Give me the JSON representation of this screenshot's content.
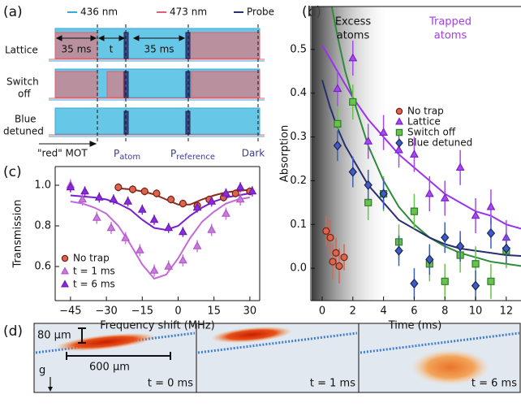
{
  "panel_labels": [
    "(a)",
    "(b)",
    "(c)",
    "(d)"
  ],
  "timing_diagram": {
    "legend": [
      {
        "name": "436 nm",
        "color": "#3aa8d8"
      },
      {
        "name": "473 nm",
        "color": "#e06070"
      },
      {
        "name": "Probe",
        "color": "#2b2f6e"
      }
    ],
    "rows": [
      [
        "Lattice"
      ],
      [
        "Switch",
        "off"
      ],
      [
        "Blue",
        "detuned"
      ]
    ],
    "durations": [
      "35 ms",
      "t",
      "35 ms"
    ],
    "events": [
      "\"red\" MOT",
      {
        "main": "P",
        "sub": "atom"
      },
      {
        "main": "P",
        "sub": "reference"
      },
      "Dark"
    ]
  },
  "images": {
    "scales": [
      "80 μm",
      "600 μm",
      "g"
    ],
    "times": [
      "t = 0 ms",
      "t = 1 ms",
      "t = 6 ms"
    ]
  },
  "chart_data": [
    {
      "type": "scatter",
      "xlabel": "Time (ms)",
      "ylabel": "Absorption",
      "xlim": [
        -0.74,
        12.96
      ],
      "xticks": [
        0,
        2,
        4,
        6,
        8,
        10,
        12
      ],
      "ylim": [
        -0.074,
        0.598
      ],
      "yticks": [
        {
          "value": 0,
          "label": "0.0"
        },
        0.1,
        0.2,
        0.3,
        0.4,
        0.5
      ],
      "legend": "upper right",
      "annotations": [
        {
          "lines": [
            "Excess",
            "atoms"
          ],
          "color": "#111111"
        },
        {
          "lines": [
            "Trapped",
            "atoms"
          ],
          "color": "#a040e0"
        }
      ],
      "series": [
        {
          "name": "No trap",
          "marker": "circle",
          "color": "#d9664f",
          "edgecolor": "#7a1e10",
          "x": [
            0.26,
            0.53,
            0.69,
            0.9,
            1.11,
            1.43
          ],
          "values": [
            0.085,
            0.07,
            0.015,
            0.035,
            0.005,
            0.025
          ],
          "errors": [
            0.035,
            0.04,
            0.04,
            0.035,
            0.04,
            0.03
          ]
        },
        {
          "name": "Lattice",
          "marker": "triangle",
          "color": "#a64be8",
          "edgecolor": "#7a1fcf",
          "x": [
            1,
            2,
            3,
            4,
            5,
            6,
            7,
            8,
            9,
            10,
            11,
            12
          ],
          "values": [
            0.41,
            0.48,
            0.29,
            0.31,
            0.27,
            0.26,
            0.17,
            0.16,
            0.23,
            0.12,
            0.14,
            0.07
          ],
          "errors": [
            0.04,
            0.04,
            0.04,
            0.04,
            0.04,
            0.04,
            0.04,
            0.04,
            0.04,
            0.04,
            0.04,
            0.04
          ]
        },
        {
          "name": "Switch off",
          "marker": "square",
          "color": "#69c24a",
          "edgecolor": "#2c7d2c",
          "x": [
            1,
            2,
            3,
            4,
            5,
            6,
            7,
            8,
            9,
            10,
            11,
            12
          ],
          "values": [
            0.33,
            0.38,
            0.15,
            0.17,
            0.06,
            0.13,
            0.01,
            -0.03,
            0.03,
            0.01,
            -0.03,
            0.04
          ],
          "errors": [
            0.04,
            0.04,
            0.04,
            0.04,
            0.04,
            0.04,
            0.04,
            0.04,
            0.04,
            0.04,
            0.04,
            0.04
          ]
        },
        {
          "name": "Blue detuned",
          "marker": "diamond",
          "color": "#3f5cc0",
          "edgecolor": "#1c2460",
          "x": [
            1,
            2,
            3,
            4,
            5,
            6,
            7,
            8,
            9,
            10,
            11,
            12
          ],
          "values": [
            0.28,
            0.22,
            0.19,
            0.17,
            0.04,
            -0.035,
            0.02,
            0.07,
            0.05,
            -0.04,
            0.08,
            0.045
          ],
          "errors": [
            0.035,
            0.035,
            0.035,
            0.035,
            0.035,
            0.035,
            0.035,
            0.035,
            0.035,
            0.035,
            0.035,
            0.035
          ]
        }
      ],
      "fits": [
        {
          "color": "#9933ee",
          "x": [
            0,
            0.5,
            1,
            1.5,
            2,
            3,
            4,
            5,
            6,
            7,
            8,
            9,
            10,
            11,
            12,
            13
          ],
          "values": [
            0.51,
            0.48,
            0.45,
            0.42,
            0.39,
            0.34,
            0.3,
            0.26,
            0.23,
            0.2,
            0.17,
            0.15,
            0.13,
            0.12,
            0.1,
            0.09
          ]
        },
        {
          "color": "#2e8b3a",
          "x": [
            0,
            0.5,
            1,
            1.5,
            2,
            3,
            4,
            5,
            6,
            7,
            8,
            9,
            10,
            11,
            12,
            13
          ],
          "values": [
            0.72,
            0.62,
            0.53,
            0.45,
            0.39,
            0.28,
            0.2,
            0.14,
            0.1,
            0.07,
            0.05,
            0.035,
            0.025,
            0.015,
            0.01,
            0.005
          ]
        },
        {
          "color": "#27306e",
          "x": [
            0,
            0.5,
            1,
            1.5,
            2,
            3,
            4,
            5,
            6,
            7,
            8,
            9,
            10,
            11,
            12,
            13
          ],
          "values": [
            0.43,
            0.37,
            0.32,
            0.28,
            0.25,
            0.19,
            0.15,
            0.11,
            0.09,
            0.07,
            0.055,
            0.045,
            0.04,
            0.035,
            0.03,
            0.028
          ]
        }
      ]
    },
    {
      "type": "scatter",
      "xlabel": "Frequency shift (MHz)",
      "ylabel": "Transmission",
      "xlim": [
        -51.4,
        34.1
      ],
      "xticks": [
        {
          "value": -45,
          "label": "−45"
        },
        {
          "value": -30,
          "label": "−30"
        },
        {
          "value": -15,
          "label": "−15"
        },
        0,
        15,
        30
      ],
      "ylim": [
        0.432,
        1.092
      ],
      "yticks": [
        0.6,
        0.8,
        {
          "value": 1,
          "label": "1.0"
        }
      ],
      "legend": "lower left",
      "series": [
        {
          "name": "No trap",
          "marker": "circle",
          "color": "#d9664f",
          "edgecolor": "#7a1e10",
          "x": [
            -25,
            -19,
            -14,
            -9,
            -3,
            2,
            8,
            13,
            19,
            24,
            30
          ],
          "values": [
            0.99,
            0.98,
            0.97,
            0.96,
            0.93,
            0.91,
            0.9,
            0.93,
            0.94,
            0.96,
            0.97
          ],
          "errors": [
            0.02,
            0.02,
            0.02,
            0.02,
            0.02,
            0.02,
            0.02,
            0.02,
            0.02,
            0.02,
            0.02
          ]
        },
        {
          "name": "t = 1 ms",
          "marker": "triangle",
          "color": "#c77ddb",
          "edgecolor": "#b055cc",
          "x": [
            -45,
            -40,
            -34,
            -28,
            -22,
            -16,
            -10,
            -4,
            2,
            8,
            14,
            20,
            26
          ],
          "values": [
            1.0,
            0.93,
            0.84,
            0.79,
            0.74,
            0.68,
            0.58,
            0.6,
            0.63,
            0.7,
            0.78,
            0.86,
            0.93
          ],
          "errors": [
            0.03,
            0.03,
            0.03,
            0.03,
            0.03,
            0.03,
            0.03,
            0.03,
            0.03,
            0.03,
            0.03,
            0.03,
            0.03
          ]
        },
        {
          "name": "t = 6 ms",
          "marker": "triangle",
          "color": "#8a2be2",
          "edgecolor": "#6a1cb0",
          "x": [
            -45,
            -39,
            -33,
            -27,
            -21,
            -15,
            -10,
            -4,
            2,
            8,
            14,
            20,
            26,
            31
          ],
          "values": [
            0.99,
            0.97,
            0.94,
            0.93,
            0.92,
            0.88,
            0.83,
            0.79,
            0.77,
            0.89,
            0.92,
            0.96,
            0.99,
            0.97
          ],
          "errors": [
            0.025,
            0.025,
            0.025,
            0.025,
            0.025,
            0.025,
            0.025,
            0.025,
            0.025,
            0.025,
            0.025,
            0.025,
            0.025,
            0.025
          ]
        }
      ],
      "fits": [
        {
          "color": "#8b2a1a",
          "x": [
            -25,
            -20,
            -15,
            -10,
            -5,
            0,
            5,
            10,
            15,
            20,
            25,
            30
          ],
          "values": [
            0.985,
            0.98,
            0.97,
            0.955,
            0.93,
            0.905,
            0.905,
            0.93,
            0.95,
            0.965,
            0.972,
            0.978
          ]
        },
        {
          "color": "#7a1fcf",
          "x": [
            -45,
            -40,
            -35,
            -30,
            -25,
            -20,
            -15,
            -10,
            -5,
            0,
            5,
            10,
            15,
            20,
            25,
            30
          ],
          "values": [
            0.95,
            0.945,
            0.94,
            0.93,
            0.91,
            0.88,
            0.83,
            0.79,
            0.78,
            0.8,
            0.85,
            0.89,
            0.92,
            0.94,
            0.95,
            0.96
          ]
        },
        {
          "color": "#c46ad8",
          "x": [
            -45,
            -40,
            -35,
            -30,
            -25,
            -20,
            -15,
            -10,
            -5,
            0,
            5,
            10,
            15,
            20,
            25,
            30
          ],
          "values": [
            0.92,
            0.91,
            0.89,
            0.86,
            0.8,
            0.71,
            0.61,
            0.54,
            0.56,
            0.64,
            0.74,
            0.82,
            0.87,
            0.91,
            0.93,
            0.94
          ]
        }
      ]
    }
  ]
}
